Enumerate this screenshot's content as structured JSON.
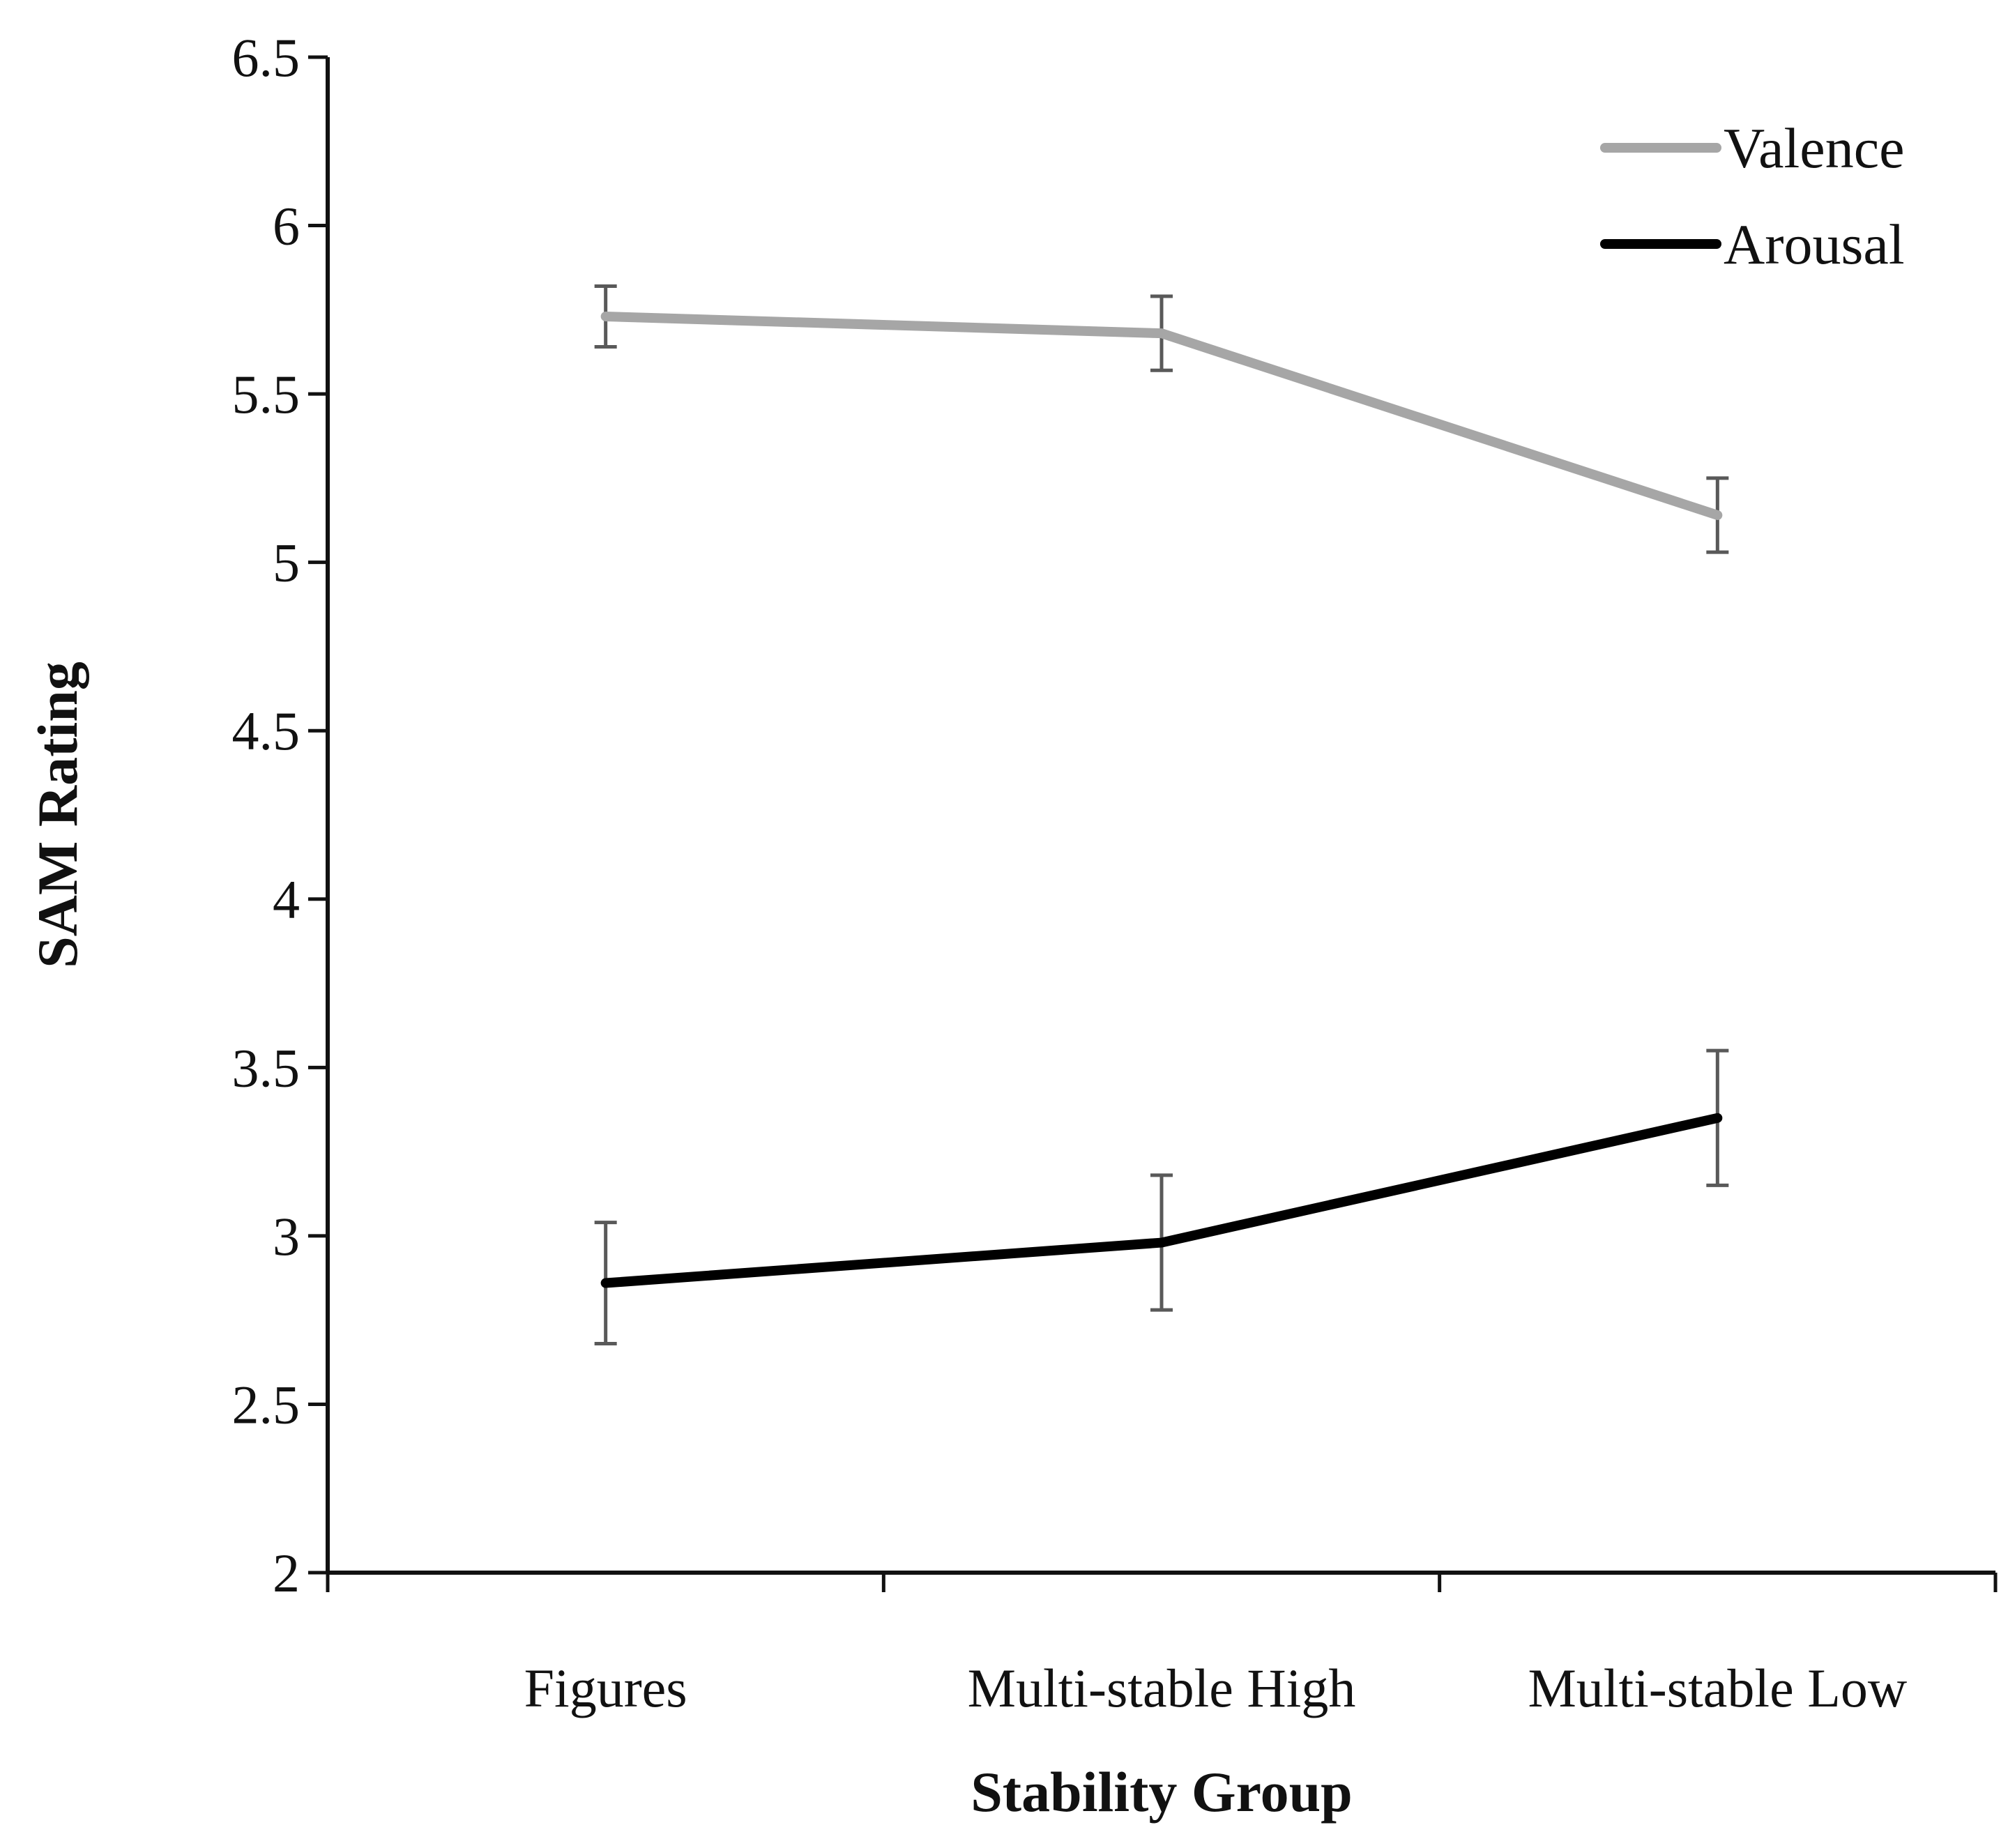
{
  "chart_data": {
    "type": "line",
    "title": "",
    "xlabel": "Stability Group",
    "ylabel": "SAM Rating",
    "categories": [
      "Figures",
      "Multi-stable High",
      "Multi-stable Low"
    ],
    "ylim": [
      2,
      6.5
    ],
    "yticks": [
      2,
      2.5,
      3,
      3.5,
      4,
      4.5,
      5,
      5.5,
      6,
      6.5
    ],
    "ytick_labels": [
      "2",
      "2.5",
      "3",
      "3.5",
      "4",
      "4.5",
      "5",
      "5.5",
      "6",
      "6.5"
    ],
    "grid": false,
    "legend_position": "top-right",
    "series": [
      {
        "name": "Valence",
        "color": "#a6a6a6",
        "values": [
          5.73,
          5.68,
          5.14
        ],
        "error": [
          0.09,
          0.11,
          0.11
        ]
      },
      {
        "name": "Arousal",
        "color": "#000000",
        "values": [
          2.86,
          2.98,
          3.35
        ],
        "error": [
          0.18,
          0.2,
          0.2
        ]
      }
    ],
    "error_bar_color": "#595959"
  }
}
